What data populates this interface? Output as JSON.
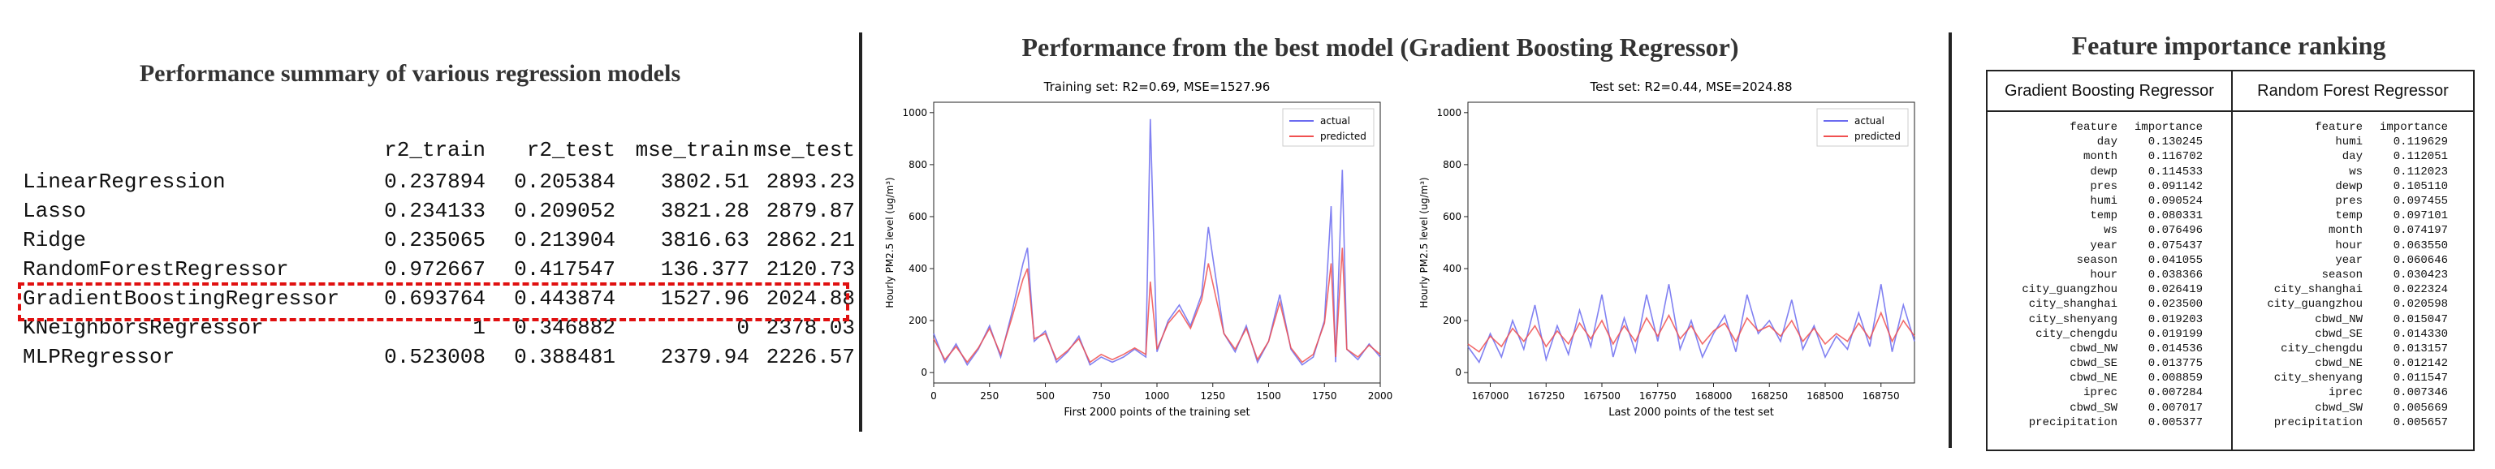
{
  "summary": {
    "title": "Performance summary of various regression models",
    "columns": [
      "r2_train",
      "r2_test",
      "mse_train",
      "mse_test"
    ],
    "rows": [
      {
        "name": "LinearRegression",
        "values": [
          "0.237894",
          "0.205384",
          "3802.51",
          "2893.23"
        ]
      },
      {
        "name": "Lasso",
        "values": [
          "0.234133",
          "0.209052",
          "3821.28",
          "2879.87"
        ]
      },
      {
        "name": "Ridge",
        "values": [
          "0.235065",
          "0.213904",
          "3816.63",
          "2862.21"
        ]
      },
      {
        "name": "RandomForestRegressor",
        "values": [
          "0.972667",
          "0.417547",
          "136.377",
          "2120.73"
        ]
      },
      {
        "name": "GradientBoostingRegressor",
        "values": [
          "0.693764",
          "0.443874",
          "1527.96",
          "2024.88"
        ]
      },
      {
        "name": "KNeighborsRegressor",
        "values": [
          "1",
          "0.346882",
          "0",
          "2378.03"
        ]
      },
      {
        "name": "MLPRegressor",
        "values": [
          "0.523008",
          "0.388481",
          "2379.94",
          "2226.57"
        ]
      }
    ],
    "highlight_color": "#e01010"
  },
  "best_model": {
    "title": "Performance from the best model (Gradient Boosting Regressor)"
  },
  "chart_data": [
    {
      "type": "line",
      "title": "Training set: R2=0.69, MSE=1527.96",
      "xlabel": "First 2000 points of the training set",
      "ylabel": "Hourly PM2.5 level (ug/m³)",
      "xlim": [
        0,
        2000
      ],
      "ylim": [
        -40,
        1040
      ],
      "xticks": [
        "0",
        "250",
        "500",
        "750",
        "1000",
        "1250",
        "1500",
        "1750",
        "2000"
      ],
      "yticks": [
        "0",
        "200",
        "400",
        "600",
        "800",
        "1000"
      ],
      "legend": "top-right",
      "x": [
        0,
        50,
        100,
        150,
        200,
        250,
        300,
        350,
        400,
        420,
        450,
        500,
        550,
        600,
        650,
        700,
        750,
        800,
        850,
        900,
        950,
        970,
        1000,
        1050,
        1100,
        1150,
        1200,
        1230,
        1300,
        1350,
        1400,
        1450,
        1500,
        1550,
        1600,
        1650,
        1700,
        1750,
        1780,
        1800,
        1830,
        1850,
        1900,
        1950,
        2000
      ],
      "series": [
        {
          "name": "actual",
          "color": "#6b6bf0",
          "values": [
            150,
            40,
            110,
            30,
            90,
            180,
            60,
            230,
            420,
            480,
            120,
            160,
            40,
            80,
            140,
            30,
            60,
            40,
            60,
            90,
            60,
            975,
            80,
            200,
            260,
            180,
            300,
            560,
            150,
            80,
            180,
            40,
            120,
            300,
            90,
            30,
            60,
            200,
            640,
            40,
            780,
            90,
            50,
            110,
            60
          ]
        },
        {
          "name": "predicted",
          "color": "#f05050",
          "values": [
            130,
            50,
            100,
            40,
            95,
            170,
            70,
            210,
            360,
            400,
            130,
            150,
            50,
            85,
            130,
            40,
            70,
            50,
            70,
            95,
            70,
            350,
            90,
            190,
            240,
            170,
            280,
            420,
            150,
            90,
            170,
            50,
            120,
            270,
            95,
            40,
            70,
            190,
            420,
            60,
            480,
            90,
            60,
            105,
            70
          ]
        }
      ]
    },
    {
      "type": "line",
      "title": "Test set: R2=0.44, MSE=2024.88",
      "xlabel": "Last 2000 points of the test set",
      "ylabel": "Hourly PM2.5 level (ug/m³)",
      "xlim": [
        166900,
        168900
      ],
      "ylim": [
        -40,
        1040
      ],
      "xticks": [
        "167000",
        "167250",
        "167500",
        "167750",
        "168000",
        "168250",
        "168500",
        "168750"
      ],
      "yticks": [
        "0",
        "200",
        "400",
        "600",
        "800",
        "1000"
      ],
      "legend": "top-right",
      "x": [
        166900,
        166950,
        167000,
        167050,
        167100,
        167150,
        167200,
        167250,
        167300,
        167350,
        167400,
        167450,
        167500,
        167550,
        167600,
        167650,
        167700,
        167750,
        167800,
        167850,
        167900,
        167950,
        168000,
        168050,
        168100,
        168150,
        168200,
        168250,
        168300,
        168350,
        168400,
        168450,
        168500,
        168550,
        168600,
        168650,
        168700,
        168750,
        168800,
        168850,
        168900
      ],
      "series": [
        {
          "name": "actual",
          "color": "#6b6bf0",
          "values": [
            100,
            40,
            150,
            60,
            200,
            90,
            260,
            50,
            180,
            70,
            240,
            100,
            300,
            60,
            210,
            80,
            300,
            120,
            340,
            90,
            200,
            60,
            150,
            220,
            80,
            300,
            150,
            200,
            120,
            280,
            90,
            180,
            60,
            140,
            90,
            230,
            100,
            340,
            80,
            260,
            120
          ]
        },
        {
          "name": "predicted",
          "color": "#f05050",
          "values": [
            110,
            80,
            140,
            100,
            170,
            120,
            180,
            100,
            160,
            110,
            190,
            130,
            200,
            110,
            180,
            120,
            210,
            140,
            220,
            130,
            180,
            110,
            160,
            190,
            120,
            210,
            160,
            180,
            140,
            200,
            120,
            170,
            110,
            150,
            120,
            190,
            130,
            230,
            120,
            200,
            140
          ]
        }
      ]
    }
  ],
  "feature_importance": {
    "title": "Feature importance ranking",
    "models": [
      {
        "name": "Gradient Boosting Regressor",
        "header": [
          "feature",
          "importance"
        ],
        "rows": [
          [
            "day",
            "0.130245"
          ],
          [
            "month",
            "0.116702"
          ],
          [
            "dewp",
            "0.114533"
          ],
          [
            "pres",
            "0.091142"
          ],
          [
            "humi",
            "0.090524"
          ],
          [
            "temp",
            "0.080331"
          ],
          [
            "ws",
            "0.076496"
          ],
          [
            "year",
            "0.075437"
          ],
          [
            "season",
            "0.041055"
          ],
          [
            "hour",
            "0.038366"
          ],
          [
            "city_guangzhou",
            "0.026419"
          ],
          [
            "city_shanghai",
            "0.023500"
          ],
          [
            "city_shenyang",
            "0.019203"
          ],
          [
            "city_chengdu",
            "0.019199"
          ],
          [
            "cbwd_NW",
            "0.014536"
          ],
          [
            "cbwd_SE",
            "0.013775"
          ],
          [
            "cbwd_NE",
            "0.008859"
          ],
          [
            "iprec",
            "0.007284"
          ],
          [
            "cbwd_SW",
            "0.007017"
          ],
          [
            "precipitation",
            "0.005377"
          ]
        ]
      },
      {
        "name": "Random Forest Regressor",
        "header": [
          "feature",
          "importance"
        ],
        "rows": [
          [
            "humi",
            "0.119629"
          ],
          [
            "day",
            "0.112051"
          ],
          [
            "ws",
            "0.112023"
          ],
          [
            "dewp",
            "0.105110"
          ],
          [
            "pres",
            "0.097455"
          ],
          [
            "temp",
            "0.097101"
          ],
          [
            "month",
            "0.074197"
          ],
          [
            "hour",
            "0.063550"
          ],
          [
            "year",
            "0.060646"
          ],
          [
            "season",
            "0.030423"
          ],
          [
            "city_shanghai",
            "0.022324"
          ],
          [
            "city_guangzhou",
            "0.020598"
          ],
          [
            "cbwd_NW",
            "0.015047"
          ],
          [
            "cbwd_SE",
            "0.014330"
          ],
          [
            "city_chengdu",
            "0.013157"
          ],
          [
            "cbwd_NE",
            "0.012142"
          ],
          [
            "city_shenyang",
            "0.011547"
          ],
          [
            "iprec",
            "0.007346"
          ],
          [
            "cbwd_SW",
            "0.005669"
          ],
          [
            "precipitation",
            "0.005657"
          ]
        ]
      }
    ]
  }
}
